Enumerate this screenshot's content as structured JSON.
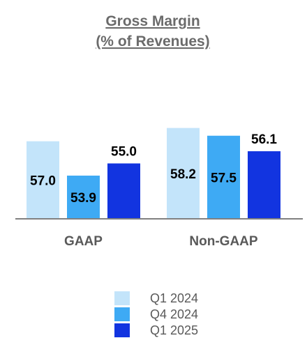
{
  "chart_data": {
    "type": "bar",
    "title": "Gross Margin",
    "subtitle": "(% of Revenues)",
    "categories": [
      "GAAP",
      "Non-GAAP"
    ],
    "series": [
      {
        "name": "Q1 2024",
        "values": [
          57.0,
          58.2
        ],
        "color": "#c3e4fa"
      },
      {
        "name": "Q4 2024",
        "values": [
          53.9,
          57.5
        ],
        "color": "#3eaaf4"
      },
      {
        "name": "Q1 2025",
        "values": [
          55.0,
          56.1
        ],
        "color": "#1234e0"
      }
    ],
    "value_labels": [
      [
        "57.0",
        "58.2"
      ],
      [
        "53.9",
        "57.5"
      ],
      [
        "55.0",
        "56.1"
      ]
    ],
    "ylim": [
      50,
      60
    ],
    "grid": false,
    "legend_position": "bottom-center",
    "xlabel": "",
    "ylabel": ""
  },
  "colors": {
    "axis": "#808080",
    "title": "#6b6b6b",
    "category_text": "#595959"
  }
}
